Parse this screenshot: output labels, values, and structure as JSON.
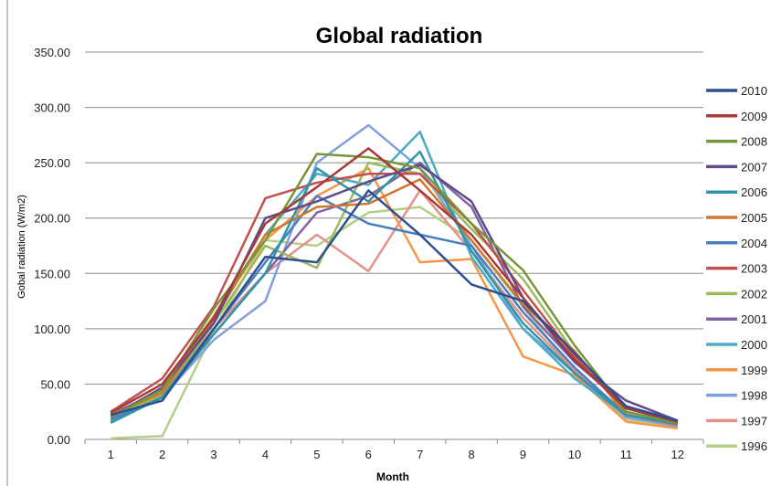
{
  "chart_data": {
    "type": "line",
    "title": "Global radiation",
    "xlabel": "Month",
    "ylabel": "Gobal radiation (W/m2)",
    "ylim": [
      0,
      350
    ],
    "yticks": [
      "0.00",
      "50.00",
      "100.00",
      "150.00",
      "200.00",
      "250.00",
      "300.00",
      "350.00"
    ],
    "x": [
      1,
      2,
      3,
      4,
      5,
      6,
      7,
      8,
      9,
      10,
      11,
      12
    ],
    "grid": "horizontal",
    "legend_position": "right",
    "series": [
      {
        "name": "2010",
        "color": "#2f4f8f",
        "values": [
          22,
          35,
          100,
          165,
          160,
          225,
          185,
          140,
          125,
          78,
          30,
          17
        ]
      },
      {
        "name": "2009",
        "color": "#a83a37",
        "values": [
          24,
          50,
          110,
          195,
          228,
          263,
          225,
          185,
          128,
          72,
          28,
          16
        ]
      },
      {
        "name": "2008",
        "color": "#77963a",
        "values": [
          20,
          45,
          118,
          180,
          258,
          255,
          245,
          195,
          153,
          85,
          25,
          15
        ]
      },
      {
        "name": "2007",
        "color": "#5f4a8b",
        "values": [
          20,
          47,
          105,
          200,
          215,
          233,
          248,
          215,
          128,
          70,
          35,
          17
        ]
      },
      {
        "name": "2006",
        "color": "#2f96a8",
        "values": [
          15,
          38,
          95,
          150,
          245,
          215,
          260,
          170,
          105,
          60,
          22,
          14
        ]
      },
      {
        "name": "2005",
        "color": "#d0782f",
        "values": [
          22,
          42,
          108,
          185,
          210,
          213,
          235,
          180,
          122,
          80,
          22,
          13
        ]
      },
      {
        "name": "2004",
        "color": "#4a7ec0",
        "values": [
          18,
          38,
          100,
          160,
          220,
          195,
          185,
          175,
          115,
          65,
          22,
          14
        ]
      },
      {
        "name": "2003",
        "color": "#c0504d",
        "values": [
          25,
          55,
          120,
          218,
          232,
          240,
          240,
          195,
          135,
          75,
          28,
          16
        ]
      },
      {
        "name": "2002",
        "color": "#9bbb59",
        "values": [
          20,
          40,
          105,
          175,
          155,
          250,
          240,
          190,
          145,
          78,
          25,
          14
        ]
      },
      {
        "name": "2001",
        "color": "#8064a2",
        "values": [
          22,
          45,
          95,
          150,
          205,
          220,
          250,
          210,
          120,
          70,
          30,
          16
        ]
      },
      {
        "name": "2000",
        "color": "#4bacc6",
        "values": [
          16,
          40,
          110,
          185,
          240,
          230,
          278,
          165,
          100,
          55,
          22,
          15
        ]
      },
      {
        "name": "1999",
        "color": "#f79646",
        "values": [
          20,
          45,
          112,
          180,
          220,
          245,
          160,
          163,
          75,
          58,
          16,
          10
        ]
      },
      {
        "name": "1998",
        "color": "#7f9fdf",
        "values": [
          18,
          38,
          90,
          125,
          250,
          284,
          245,
          175,
          100,
          60,
          20,
          12
        ]
      },
      {
        "name": "1997",
        "color": "#e6908a",
        "values": [
          23,
          43,
          100,
          150,
          185,
          152,
          225,
          170,
          110,
          62,
          24,
          13
        ]
      },
      {
        "name": "1996",
        "color": "#b5cf86",
        "values": [
          1,
          3,
          98,
          180,
          175,
          205,
          210,
          180,
          120,
          60,
          18,
          12
        ]
      }
    ]
  }
}
